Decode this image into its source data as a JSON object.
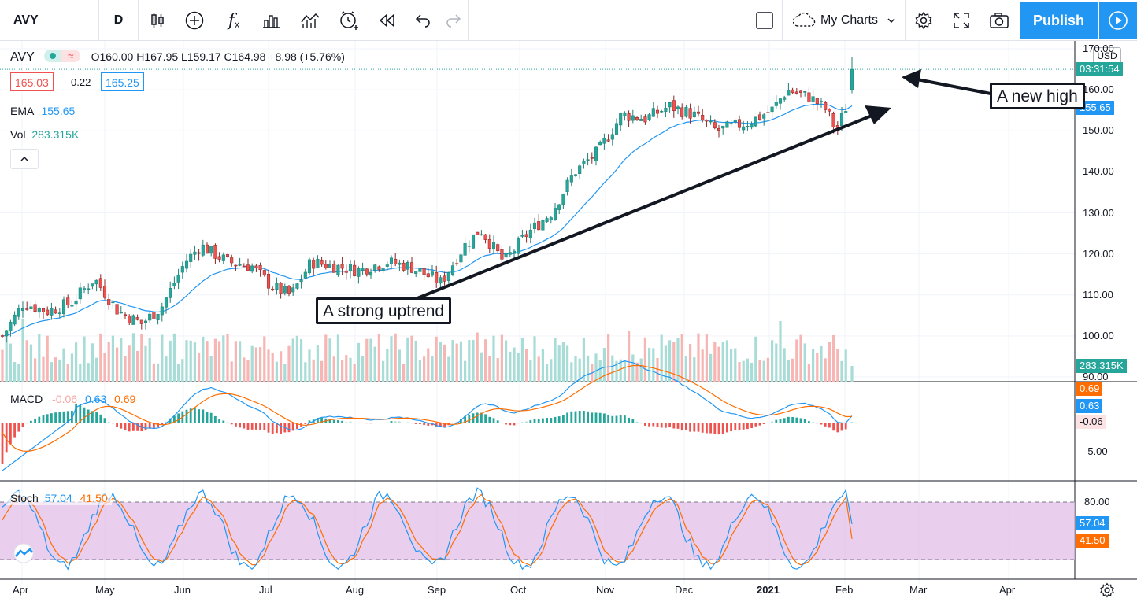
{
  "toolbar": {
    "symbol": "AVY",
    "interval": "D",
    "my_charts": "My Charts",
    "publish": "Publish"
  },
  "legend": {
    "symbol": "AVY",
    "ohlc": "O160.00  H167.95  L159.17  C164.98  +8.98 (+5.76%)",
    "bid": "165.03",
    "spread": "0.22",
    "ask": "165.25",
    "ema_label": "EMA",
    "ema_value": "155.65",
    "vol_label": "Vol",
    "vol_value": "283.315K",
    "macd_label": "MACD",
    "macd_hist": "-0.06",
    "macd_line": "0.63",
    "macd_signal": "0.69",
    "stoch_label": "Stoch",
    "stoch_k": "57.04",
    "stoch_d": "41.50"
  },
  "price_axis": {
    "currency": "USD",
    "ticks": [
      "170.00",
      "160.00",
      "150.00",
      "140.00",
      "130.00",
      "120.00",
      "110.00",
      "100.00",
      "90.00"
    ],
    "countdown": "03:31:54",
    "ema_tag": "155.65",
    "vol_tag": "283.315K"
  },
  "macd_axis": {
    "ticks": [
      "-5.00"
    ],
    "tags": [
      "0.69",
      "0.63",
      "-0.06"
    ]
  },
  "stoch_axis": {
    "ticks": [
      "80.00"
    ],
    "tags": [
      "57.04",
      "41.50"
    ]
  },
  "time_axis": [
    "Apr",
    "May",
    "Jun",
    "Jul",
    "Aug",
    "Sep",
    "Oct",
    "Nov",
    "Dec",
    "2021",
    "Feb",
    "Mar",
    "Apr"
  ],
  "annotations": {
    "uptrend": "A strong uptrend",
    "new_high": "A new high"
  },
  "colors": {
    "up": "#26a69a",
    "down": "#ef5350",
    "ema": "#2196f3",
    "macd": "#2196f3",
    "signal": "#ff6d00",
    "stoch_band": "#e1bee7",
    "accent": "#2196f3"
  },
  "chart_data": {
    "type": "candlestick",
    "price_range": [
      90,
      172
    ],
    "key_closes": [
      {
        "x": "Apr",
        "y": 100
      },
      {
        "x": "Apr mid",
        "y": 108
      },
      {
        "x": "May",
        "y": 114
      },
      {
        "x": "May mid",
        "y": 106
      },
      {
        "x": "May end",
        "y": 103
      },
      {
        "x": "Jun",
        "y": 122
      },
      {
        "x": "Jun mid",
        "y": 118
      },
      {
        "x": "Jul",
        "y": 110
      },
      {
        "x": "Jul mid",
        "y": 117
      },
      {
        "x": "Aug",
        "y": 116
      },
      {
        "x": "Aug end",
        "y": 118
      },
      {
        "x": "Sep",
        "y": 113
      },
      {
        "x": "Sep mid",
        "y": 126
      },
      {
        "x": "Oct",
        "y": 118
      },
      {
        "x": "Oct mid",
        "y": 130
      },
      {
        "x": "Nov",
        "y": 140
      },
      {
        "x": "Nov mid",
        "y": 154
      },
      {
        "x": "Dec",
        "y": 156
      },
      {
        "x": "Dec mid",
        "y": 150
      },
      {
        "x": "2021",
        "y": 155
      },
      {
        "x": "Jan mid",
        "y": 160
      },
      {
        "x": "Jan end",
        "y": 150
      },
      {
        "x": "Feb",
        "y": 164.98
      }
    ],
    "last_bar": {
      "open": 160.0,
      "high": 167.95,
      "low": 159.17,
      "close": 164.98
    },
    "ema_last": 155.65,
    "volume_last": "283.315K",
    "macd": {
      "macd": 0.63,
      "signal": 0.69,
      "histogram": -0.06
    },
    "stoch": {
      "k": 57.04,
      "d": 41.5,
      "band": [
        20,
        80
      ]
    }
  }
}
